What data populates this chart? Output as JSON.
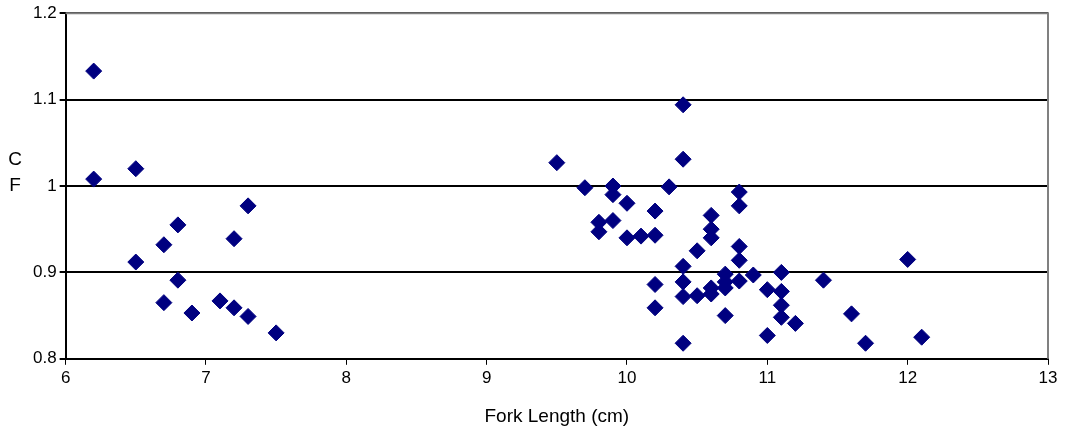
{
  "chart_data": {
    "type": "scatter",
    "xlabel": "Fork Length (cm)",
    "ylabel": "CF",
    "marker": "diamond",
    "grid": "y",
    "legend": false,
    "xlim": [
      6,
      13
    ],
    "xticks": [
      6,
      7,
      8,
      9,
      10,
      11,
      12,
      13
    ],
    "ylim": [
      0.8,
      1.2
    ],
    "yticks": [
      0.8,
      0.9,
      1,
      1.1,
      1.2
    ],
    "series": [
      {
        "color": "#000080",
        "x": [
          6.2,
          6.2,
          6.5,
          6.5,
          6.7,
          6.7,
          6.8,
          6.8,
          6.9,
          7.1,
          7.2,
          7.2,
          7.3,
          7.3,
          7.5,
          9.5,
          9.7,
          9.8,
          9.8,
          9.9,
          9.9,
          9.9,
          10.0,
          10.0,
          10.1,
          10.2,
          10.2,
          10.2,
          10.2,
          10.3,
          10.4,
          10.4,
          10.4,
          10.4,
          10.4,
          10.4,
          10.5,
          10.5,
          10.6,
          10.6,
          10.6,
          10.6,
          10.6,
          10.7,
          10.7,
          10.7,
          10.7,
          10.8,
          10.8,
          10.8,
          10.8,
          10.8,
          10.9,
          11.0,
          11.0,
          11.1,
          11.1,
          11.1,
          11.1,
          11.2,
          11.4,
          11.6,
          11.7,
          12.0,
          12.1
        ],
        "values": [
          1.133,
          1.008,
          1.02,
          0.912,
          0.932,
          0.865,
          0.955,
          0.891,
          0.853,
          0.867,
          0.939,
          0.859,
          0.977,
          0.849,
          0.83,
          1.027,
          0.998,
          0.958,
          0.947,
          1.0,
          0.99,
          0.96,
          0.98,
          0.94,
          0.942,
          0.943,
          0.971,
          0.886,
          0.859,
          0.999,
          1.094,
          1.031,
          0.907,
          0.889,
          0.872,
          0.818,
          0.925,
          0.873,
          0.966,
          0.95,
          0.94,
          0.882,
          0.875,
          0.898,
          0.889,
          0.882,
          0.85,
          0.993,
          0.977,
          0.93,
          0.914,
          0.89,
          0.897,
          0.88,
          0.827,
          0.9,
          0.878,
          0.862,
          0.848,
          0.841,
          0.891,
          0.852,
          0.818,
          0.915,
          0.825
        ]
      }
    ]
  }
}
